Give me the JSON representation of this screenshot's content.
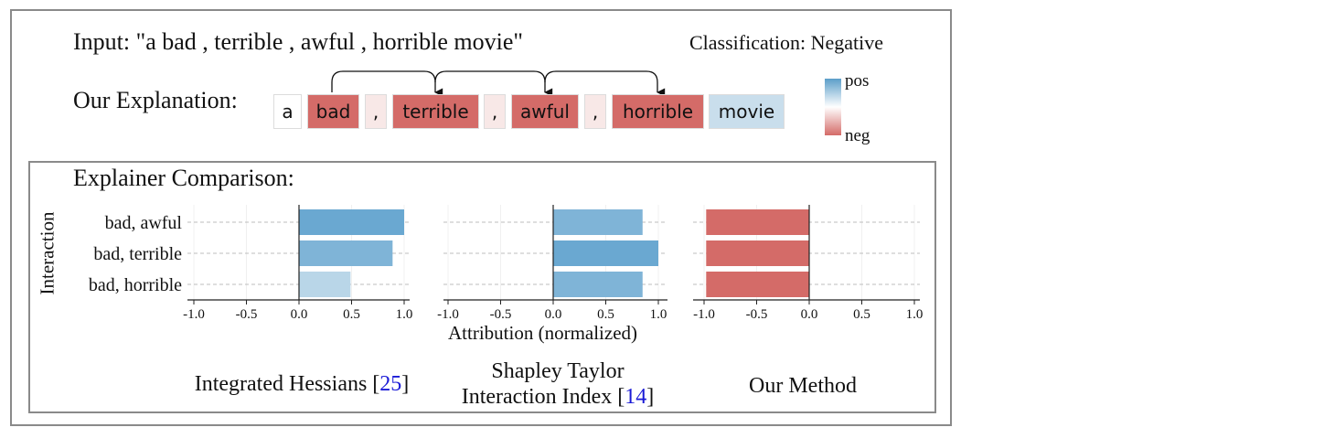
{
  "input_text": "Input: \"a bad , terrible , awful , horrible movie\"",
  "classification": "Classification: Negative",
  "explanation_label": "Our Explanation:",
  "tokens": [
    {
      "text": "a",
      "color": "#ffffff"
    },
    {
      "text": "bad",
      "color": "#d46b68"
    },
    {
      "text": ",",
      "color": "#f8e8e7"
    },
    {
      "text": "terrible",
      "color": "#d46b68"
    },
    {
      "text": ",",
      "color": "#f8e8e7"
    },
    {
      "text": "awful",
      "color": "#d46b68"
    },
    {
      "text": ",",
      "color": "#f8e8e7"
    },
    {
      "text": "horrible",
      "color": "#d46b68"
    },
    {
      "text": "movie",
      "color": "#c9deec"
    }
  ],
  "legend": {
    "pos_label": "pos",
    "neg_label": "neg"
  },
  "comparison_title": "Explainer Comparison:",
  "methods": [
    {
      "name": "Integrated Hessians [",
      "ref": "25",
      "close": "]"
    },
    {
      "name_line1": "Shapley Taylor",
      "name_line2": "Interaction Index [",
      "ref": "14",
      "close": "]"
    },
    {
      "name": "Our Method"
    }
  ],
  "chart_data": [
    {
      "type": "bar",
      "orientation": "horizontal",
      "categories": [
        "bad, awful",
        "bad, terrible",
        "bad, horrible"
      ],
      "values": [
        1.0,
        0.89,
        0.49
      ],
      "colors": [
        "#6aa8d1",
        "#7fb4d7",
        "#b9d6e8"
      ],
      "xlim": [
        -1.0,
        1.0
      ],
      "xticks": [
        "-1.0",
        "-0.5",
        "0.0",
        "0.5",
        "1.0"
      ],
      "ylabel": "Interaction",
      "grid": true
    },
    {
      "type": "bar",
      "orientation": "horizontal",
      "categories": [
        "bad, awful",
        "bad, terrible",
        "bad, horrible"
      ],
      "values": [
        0.85,
        1.0,
        0.85
      ],
      "colors": [
        "#7fb4d7",
        "#6aa8d1",
        "#7fb4d7"
      ],
      "xlim": [
        -1.0,
        1.0
      ],
      "xticks": [
        "-1.0",
        "-0.5",
        "0.0",
        "0.5",
        "1.0"
      ],
      "xlabel": "Attribution (normalized)",
      "grid": true
    },
    {
      "type": "bar",
      "orientation": "horizontal",
      "categories": [
        "bad, awful",
        "bad, terrible",
        "bad, horrible"
      ],
      "values": [
        -0.98,
        -0.98,
        -0.98
      ],
      "colors": [
        "#d46b68",
        "#d46b68",
        "#d46b68"
      ],
      "xlim": [
        -1.0,
        1.0
      ],
      "xticks": [
        "-1.0",
        "-0.5",
        "0.0",
        "0.5",
        "1.0"
      ],
      "grid": true
    }
  ]
}
